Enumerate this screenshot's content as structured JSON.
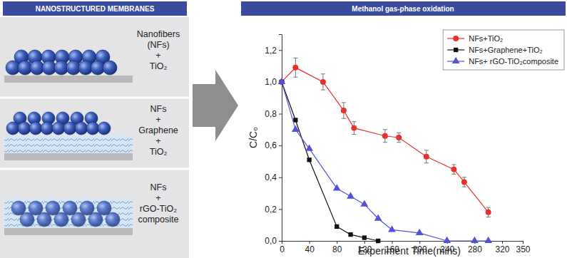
{
  "left_panel": {
    "title": "NANOSTRUCTURED MEMBRANES",
    "items": [
      [
        "Nanofibers",
        "(NFs)",
        "+",
        "TiO₂"
      ],
      [
        "NFs",
        "+",
        "Graphene",
        "+",
        "TiO₂"
      ],
      [
        "NFs",
        "+",
        "rGO-TiO₂",
        "composite"
      ]
    ]
  },
  "chart_data": {
    "type": "line",
    "title": "Methanol gas-phase oxidation",
    "x_label": "Experiment Time(mins)",
    "y_label": "C/C₀",
    "xlim": [
      0,
      350
    ],
    "xticks": [
      0,
      40,
      80,
      120,
      160,
      200,
      240,
      280,
      320,
      350
    ],
    "ylim": [
      0,
      1.3
    ],
    "yticks": [
      {
        "value": 0,
        "label": "0,0"
      },
      {
        "value": 0.2,
        "label": "0,2"
      },
      {
        "value": 0.4,
        "label": "0,4"
      },
      {
        "value": 0.6,
        "label": "0,6"
      },
      {
        "value": 0.8,
        "label": "0,8"
      },
      {
        "value": 1.0,
        "label": "1,0"
      },
      {
        "value": 1.2,
        "label": "1,2"
      }
    ],
    "grid": false,
    "legend": "upper right",
    "series": [
      {
        "name": "NFs+TiO₂",
        "color": "#e8302c",
        "marker": "circle",
        "line_style": "solid",
        "x": [
          0,
          20,
          60,
          90,
          105,
          150,
          170,
          210,
          250,
          265,
          300
        ],
        "values": [
          1.0,
          1.09,
          1.0,
          0.82,
          0.71,
          0.66,
          0.65,
          0.53,
          0.45,
          0.37,
          0.18
        ],
        "errors": [
          0,
          0.06,
          0.05,
          0.05,
          0.04,
          0.04,
          0.03,
          0.04,
          0.03,
          0.03,
          0.03
        ]
      },
      {
        "name": "NFs+Graphene+TiO₂",
        "color": "#111111",
        "marker": "square",
        "line_style": "solid",
        "x": [
          0,
          20,
          40,
          80,
          100,
          120,
          140
        ],
        "values": [
          1.0,
          0.76,
          0.51,
          0.09,
          0.04,
          0.02,
          0.0
        ]
      },
      {
        "name": "NFs+ rGO-TiO₂composite",
        "color": "#5552d6",
        "marker": "triangle",
        "line_style": "solid",
        "x": [
          0,
          20,
          40,
          80,
          100,
          120,
          140,
          160,
          200,
          240,
          280,
          300
        ],
        "values": [
          1.0,
          0.7,
          0.58,
          0.33,
          0.28,
          0.23,
          0.14,
          0.07,
          0.05,
          0.0,
          0.0,
          0.0
        ]
      }
    ]
  }
}
